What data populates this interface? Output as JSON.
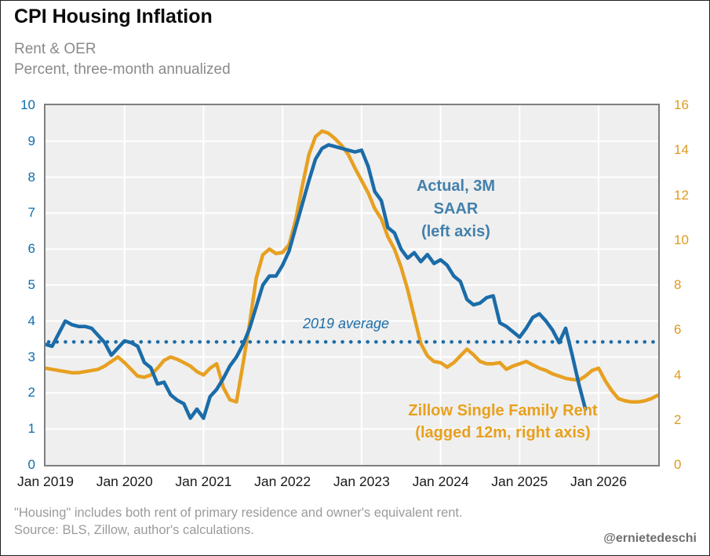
{
  "header": {
    "title": "CPI Housing Inflation",
    "subtitle_line1": "Rent & OER",
    "subtitle_line2": "Percent, three-month annualized"
  },
  "chart_data": {
    "type": "line",
    "title": "CPI Housing Inflation",
    "x_tick_labels": [
      "Jan 2019",
      "Jan 2020",
      "Jan 2021",
      "Jan 2022",
      "Jan 2023",
      "Jan 2024",
      "Jan 2025",
      "Jan 2026"
    ],
    "x_unit": "months since Jan 2019, monthly data",
    "grid": true,
    "left_axis": {
      "min": 0,
      "max": 10,
      "tick_step": 1,
      "label_color": "#0e6dae"
    },
    "right_axis": {
      "min": 0,
      "max": 16,
      "tick_step": 2,
      "label_color": "#dd9a1f"
    },
    "reference_line": {
      "label": "2019 average",
      "axis": "left",
      "value": 3.42,
      "style": "dotted",
      "color": "#1b6ca8"
    },
    "series": [
      {
        "name": "Zillow Single Family Rent (lagged 12m, right axis)",
        "axis": "right",
        "color": "#e7a021",
        "start_month": "Jan 2019",
        "values": [
          4.3,
          4.25,
          4.2,
          4.15,
          4.1,
          4.1,
          4.15,
          4.2,
          4.25,
          4.4,
          4.6,
          4.8,
          4.55,
          4.25,
          3.95,
          3.9,
          4.0,
          4.3,
          4.65,
          4.8,
          4.7,
          4.55,
          4.4,
          4.15,
          4.0,
          4.3,
          4.5,
          3.45,
          2.9,
          2.8,
          4.5,
          6.3,
          8.3,
          9.35,
          9.6,
          9.4,
          9.45,
          9.8,
          10.9,
          12.4,
          13.8,
          14.6,
          14.85,
          14.75,
          14.5,
          14.2,
          13.8,
          13.2,
          12.65,
          12.1,
          11.4,
          10.95,
          10.15,
          9.6,
          8.8,
          7.8,
          6.6,
          5.4,
          4.85,
          4.6,
          4.55,
          4.35,
          4.55,
          4.85,
          5.15,
          4.9,
          4.6,
          4.5,
          4.5,
          4.55,
          4.25,
          4.4,
          4.5,
          4.6,
          4.45,
          4.3,
          4.2,
          4.05,
          3.95,
          3.85,
          3.8,
          3.77,
          3.95,
          4.2,
          4.3,
          3.75,
          3.3,
          2.95,
          2.85,
          2.8,
          2.8,
          2.85,
          2.95,
          3.1
        ]
      },
      {
        "name": "Actual, 3M SAAR (left axis)",
        "axis": "left",
        "color": "#1b6ca8",
        "start_month": "Jan 2019",
        "values": [
          3.35,
          3.3,
          3.65,
          4.0,
          3.9,
          3.85,
          3.85,
          3.8,
          3.6,
          3.4,
          3.05,
          3.25,
          3.45,
          3.4,
          3.3,
          2.85,
          2.7,
          2.25,
          2.3,
          1.95,
          1.8,
          1.7,
          1.3,
          1.55,
          1.3,
          1.9,
          2.1,
          2.4,
          2.75,
          3.0,
          3.35,
          3.8,
          4.4,
          5.0,
          5.25,
          5.25,
          5.55,
          5.95,
          6.6,
          7.25,
          7.9,
          8.5,
          8.8,
          8.9,
          8.85,
          8.8,
          8.75,
          8.7,
          8.75,
          8.3,
          7.6,
          7.35,
          6.6,
          6.45,
          6.0,
          5.75,
          5.9,
          5.65,
          5.85,
          5.6,
          5.7,
          5.55,
          5.25,
          5.1,
          4.6,
          4.45,
          4.5,
          4.65,
          4.7,
          3.95,
          3.85,
          3.7,
          3.55,
          3.8,
          4.1,
          4.2,
          4.0,
          3.75,
          3.4,
          3.8,
          3.05,
          2.25,
          1.55
        ]
      }
    ]
  },
  "annotations": {
    "actual_line1": "Actual, 3M",
    "actual_line2": "SAAR",
    "actual_line3": "(left axis)",
    "avg_label": "2019 average",
    "zillow_line1": "Zillow Single Family Rent",
    "zillow_line2": "(lagged 12m, right axis)"
  },
  "footer": {
    "note": "\"Housing\" includes both rent of primary residence and owner's equivalent rent.",
    "source": "Source: BLS, Zillow, author's calculations.",
    "handle": "@ernietedeschi"
  }
}
